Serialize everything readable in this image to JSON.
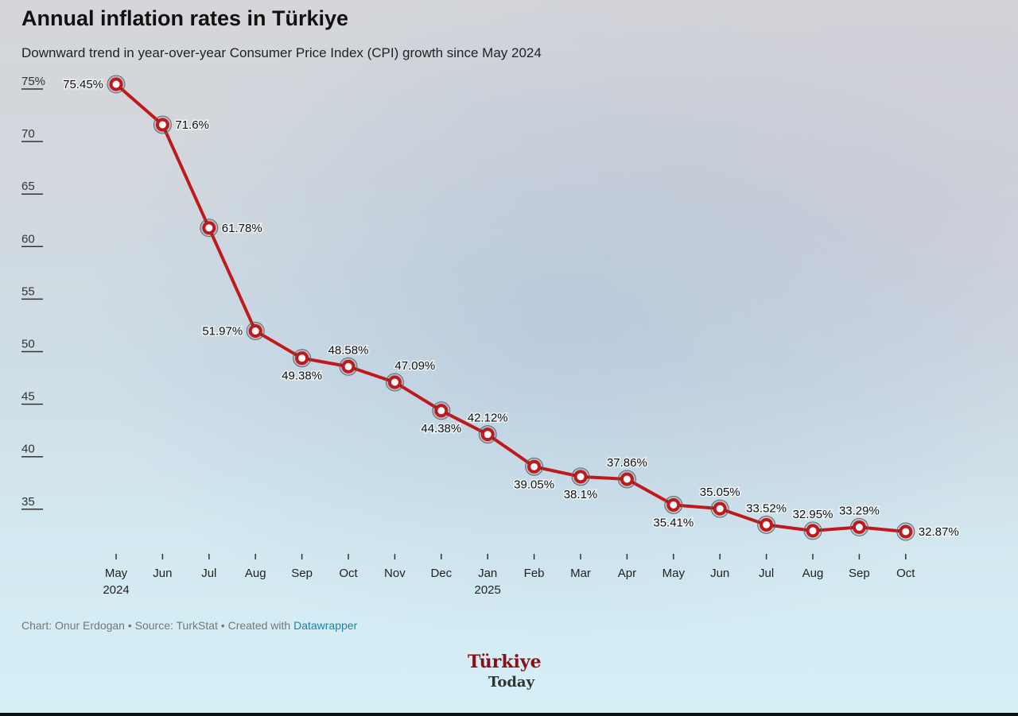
{
  "title": "Annual inflation rates in Türkiye",
  "subtitle": "Downward trend in year-over-year Consumer Price Index (CPI) growth since May 2024",
  "footer": {
    "credit": "Chart: Onur Erdogan • Source: TurkStat • Created with ",
    "link": "Datawrapper"
  },
  "logo": {
    "line1": "Türkiye",
    "line2": "Today"
  },
  "colors": {
    "line": "#c0191c",
    "marker_fill": "#ffffff",
    "link": "#1d81a2"
  },
  "chart_data": {
    "type": "line",
    "title": "Annual inflation rates in Türkiye",
    "categories": [
      "May",
      "Jun",
      "Jul",
      "Aug",
      "Sep",
      "Oct",
      "Nov",
      "Dec",
      "Jan",
      "Feb",
      "Mar",
      "Apr",
      "May",
      "Jun",
      "Jul",
      "Aug",
      "Sep",
      "Oct"
    ],
    "category_sublabels": [
      "2024",
      "",
      "",
      "",
      "",
      "",
      "",
      "",
      "2025",
      "",
      "",
      "",
      "",
      "",
      "",
      "",
      "",
      ""
    ],
    "values": [
      75.45,
      71.6,
      61.78,
      51.97,
      49.38,
      48.58,
      47.09,
      44.38,
      42.12,
      39.05,
      38.1,
      37.86,
      35.41,
      35.05,
      33.52,
      32.95,
      33.29,
      32.87
    ],
    "data_labels": [
      "75.45%",
      "71.6%",
      "61.78%",
      "51.97%",
      "49.38%",
      "48.58%",
      "47.09%",
      "44.38%",
      "42.12%",
      "39.05%",
      "38.1%",
      "37.86%",
      "35.41%",
      "35.05%",
      "33.52%",
      "32.95%",
      "33.29%",
      "32.87%"
    ],
    "y_ticks": [
      35,
      40,
      45,
      50,
      55,
      60,
      65,
      70,
      75
    ],
    "y_tick_labels": [
      "35",
      "40",
      "45",
      "50",
      "55",
      "60",
      "65",
      "70",
      "75%"
    ],
    "ylim": [
      32.87,
      75.45
    ],
    "grid": false,
    "xlabel": "",
    "ylabel": ""
  }
}
